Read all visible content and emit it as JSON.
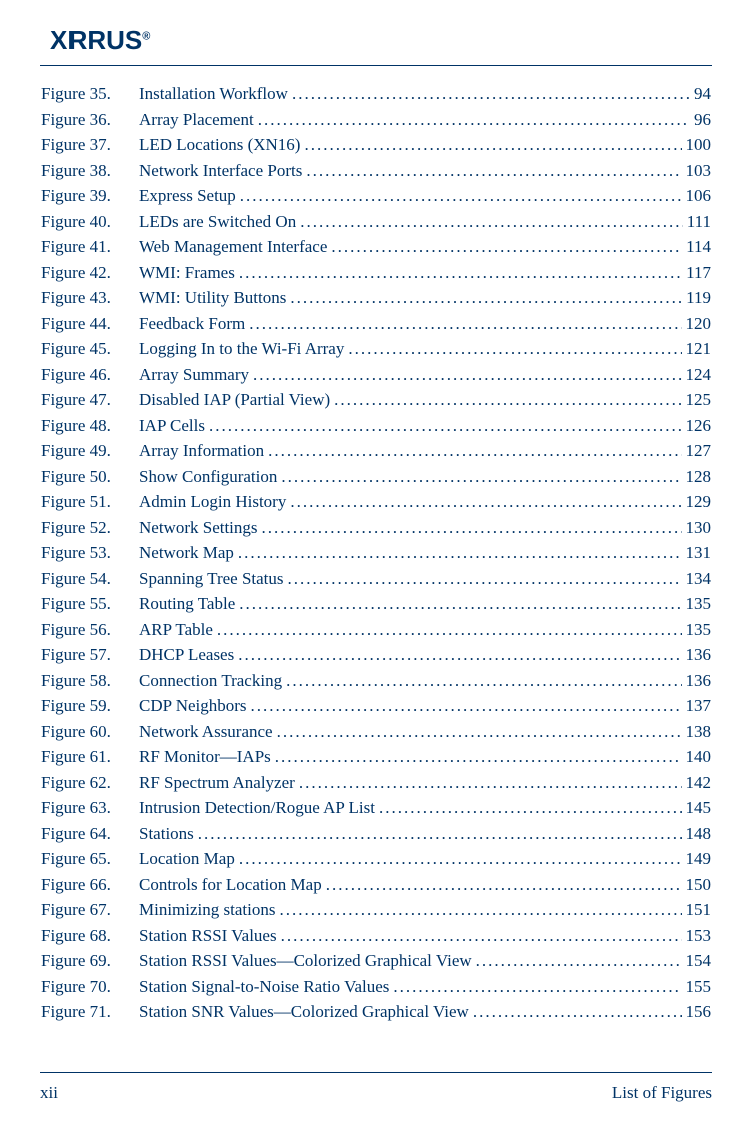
{
  "brand": "XIRRUS",
  "page_number": "xii",
  "section_title": "List of Figures",
  "text_color": "#003366",
  "background_color": "#ffffff",
  "font_family": "Palatino Linotype",
  "entries": [
    {
      "num": "Figure 35.",
      "title": "Installation Workflow",
      "page": "94"
    },
    {
      "num": "Figure 36.",
      "title": "Array Placement",
      "page": "96"
    },
    {
      "num": "Figure 37.",
      "title": "LED Locations (XN16)",
      "page": "100"
    },
    {
      "num": "Figure 38.",
      "title": "Network Interface Ports",
      "page": "103"
    },
    {
      "num": "Figure 39.",
      "title": "Express Setup",
      "page": "106"
    },
    {
      "num": "Figure 40.",
      "title": "LEDs are Switched On",
      "page": "111"
    },
    {
      "num": "Figure 41.",
      "title": "Web Management Interface",
      "page": "114"
    },
    {
      "num": "Figure 42.",
      "title": "WMI: Frames",
      "page": "117"
    },
    {
      "num": "Figure 43.",
      "title": "WMI: Utility Buttons",
      "page": "119"
    },
    {
      "num": "Figure 44.",
      "title": "Feedback Form",
      "page": "120"
    },
    {
      "num": "Figure 45.",
      "title": "Logging In to the Wi-Fi Array",
      "page": "121"
    },
    {
      "num": "Figure 46.",
      "title": "Array Summary",
      "page": "124"
    },
    {
      "num": "Figure 47.",
      "title": "Disabled IAP (Partial View)",
      "page": "125"
    },
    {
      "num": "Figure 48.",
      "title": "IAP Cells",
      "page": "126"
    },
    {
      "num": "Figure 49.",
      "title": "Array Information",
      "page": "127"
    },
    {
      "num": "Figure 50.",
      "title": "Show Configuration",
      "page": "128"
    },
    {
      "num": "Figure 51.",
      "title": "Admin Login History",
      "page": "129"
    },
    {
      "num": "Figure 52.",
      "title": "Network Settings",
      "page": "130"
    },
    {
      "num": "Figure 53.",
      "title": "Network Map",
      "page": "131"
    },
    {
      "num": "Figure 54.",
      "title": "Spanning Tree Status",
      "page": "134"
    },
    {
      "num": "Figure 55.",
      "title": "Routing Table",
      "page": "135"
    },
    {
      "num": "Figure 56.",
      "title": "ARP Table",
      "page": "135"
    },
    {
      "num": "Figure 57.",
      "title": "DHCP Leases",
      "page": "136"
    },
    {
      "num": "Figure 58.",
      "title": "Connection Tracking",
      "page": "136"
    },
    {
      "num": "Figure 59.",
      "title": "CDP Neighbors",
      "page": "137"
    },
    {
      "num": "Figure 60.",
      "title": "Network Assurance",
      "page": "138"
    },
    {
      "num": "Figure 61.",
      "title": "RF Monitor—IAPs",
      "page": "140"
    },
    {
      "num": "Figure 62.",
      "title": "RF Spectrum Analyzer",
      "page": "142"
    },
    {
      "num": "Figure 63.",
      "title": "Intrusion Detection/Rogue AP List",
      "page": "145"
    },
    {
      "num": "Figure 64.",
      "title": "Stations",
      "page": "148"
    },
    {
      "num": "Figure 65.",
      "title": "Location Map",
      "page": "149"
    },
    {
      "num": "Figure 66.",
      "title": "Controls for Location Map",
      "page": "150"
    },
    {
      "num": "Figure 67.",
      "title": "Minimizing stations",
      "page": "151"
    },
    {
      "num": "Figure 68.",
      "title": "Station RSSI Values",
      "page": "153"
    },
    {
      "num": "Figure 69.",
      "title": "Station RSSI Values—Colorized Graphical View",
      "page": "154"
    },
    {
      "num": "Figure 70.",
      "title": "Station Signal-to-Noise Ratio Values",
      "page": "155"
    },
    {
      "num": "Figure 71.",
      "title": "Station SNR Values—Colorized Graphical View",
      "page": "156"
    }
  ]
}
